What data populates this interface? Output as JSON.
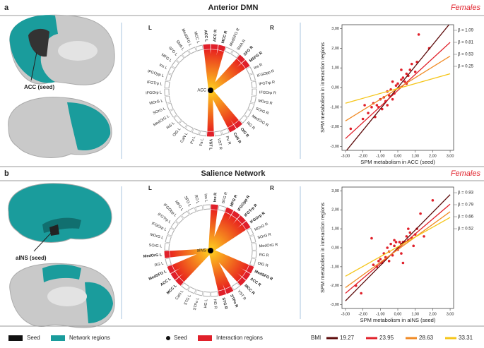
{
  "panels": [
    {
      "letter": "a",
      "title": "Anterior DMN",
      "group": "Females",
      "seed_label": "ACC (seed)",
      "circle": {
        "center": "ACC",
        "side_left": "L",
        "side_right": "R",
        "nodes": [
          {
            "label": "ACC R",
            "interaction": true
          },
          {
            "label": "MCC R",
            "interaction": true
          },
          {
            "label": "MedSFG R",
            "interaction": false
          },
          {
            "label": "SMA R",
            "interaction": false
          },
          {
            "label": "SFG R",
            "interaction": true
          },
          {
            "label": "MSFG R",
            "interaction": true
          },
          {
            "label": "Ins R",
            "interaction": false
          },
          {
            "label": "IFGOpp R",
            "interaction": false
          },
          {
            "label": "IFGTrp R",
            "interaction": false
          },
          {
            "label": "IFGOrp R",
            "interaction": false
          },
          {
            "label": "MOrG R",
            "interaction": false
          },
          {
            "label": "SOrG R",
            "interaction": false
          },
          {
            "label": "MedOrG R",
            "interaction": false
          },
          {
            "label": "RG R",
            "interaction": false
          },
          {
            "label": "OlG R",
            "interaction": true
          },
          {
            "label": "CaN R",
            "interaction": true
          },
          {
            "label": "Pu R",
            "interaction": false
          },
          {
            "label": "VST R",
            "interaction": false
          },
          {
            "label": "VST L",
            "interaction": true
          },
          {
            "label": "Pa L",
            "interaction": false
          },
          {
            "label": "Pu L",
            "interaction": false
          },
          {
            "label": "CaN L",
            "interaction": false
          },
          {
            "label": "OlG L",
            "interaction": false
          },
          {
            "label": "RG L",
            "interaction": false
          },
          {
            "label": "MedOrG L",
            "interaction": false
          },
          {
            "label": "SOrG L",
            "interaction": false
          },
          {
            "label": "MOrG L",
            "interaction": false
          },
          {
            "label": "IFGOrp L",
            "interaction": false
          },
          {
            "label": "IFGTrp L",
            "interaction": false
          },
          {
            "label": "IFGOpp L",
            "interaction": false
          },
          {
            "label": "Ins L",
            "interaction": false
          },
          {
            "label": "MFG L",
            "interaction": false
          },
          {
            "label": "SFG L",
            "interaction": false
          },
          {
            "label": "SMA L",
            "interaction": false
          },
          {
            "label": "MedSFG L",
            "interaction": false
          },
          {
            "label": "MCC L",
            "interaction": false
          },
          {
            "label": "ACC L",
            "interaction": true
          }
        ]
      }
    },
    {
      "letter": "b",
      "title": "Salience Network",
      "group": "Females",
      "seed_label": "aINS (seed)",
      "circle": {
        "center": "aINS",
        "side_left": "L",
        "side_right": "R",
        "nodes": [
          {
            "label": "Ins R",
            "interaction": true
          },
          {
            "label": "SFG R",
            "interaction": false
          },
          {
            "label": "MFG R",
            "interaction": true
          },
          {
            "label": "IFGOpp R",
            "interaction": true
          },
          {
            "label": "IFGTrp R",
            "interaction": true
          },
          {
            "label": "IFGOrp R",
            "interaction": true
          },
          {
            "label": "MOrG R",
            "interaction": false
          },
          {
            "label": "SOrG R",
            "interaction": false
          },
          {
            "label": "MedOrG R",
            "interaction": false
          },
          {
            "label": "RG R",
            "interaction": false
          },
          {
            "label": "OlG R",
            "interaction": false
          },
          {
            "label": "MedSFG R",
            "interaction": true
          },
          {
            "label": "ACC R",
            "interaction": true
          },
          {
            "label": "MCC R",
            "interaction": true
          },
          {
            "label": "VST R",
            "interaction": false
          },
          {
            "label": "STPo R",
            "interaction": true
          },
          {
            "label": "STG R",
            "interaction": true
          },
          {
            "label": "HG R",
            "interaction": false
          },
          {
            "label": "HG L",
            "interaction": false
          },
          {
            "label": "STPo L",
            "interaction": false
          },
          {
            "label": "STG L",
            "interaction": false
          },
          {
            "label": "CaN L",
            "interaction": false
          },
          {
            "label": "MCC L",
            "interaction": true
          },
          {
            "label": "ACC L",
            "interaction": true
          },
          {
            "label": "MedSFG L",
            "interaction": true
          },
          {
            "label": "RG L",
            "interaction": false
          },
          {
            "label": "MedOrG L",
            "interaction": true
          },
          {
            "label": "SOrG L",
            "interaction": false
          },
          {
            "label": "MOrG L",
            "interaction": false
          },
          {
            "label": "IFGOrp L",
            "interaction": false
          },
          {
            "label": "IFGTrp L",
            "interaction": false
          },
          {
            "label": "IFGOpp L",
            "interaction": false
          },
          {
            "label": "MFG L",
            "interaction": false
          },
          {
            "label": "SFG L",
            "interaction": false
          },
          {
            "label": "RO L",
            "interaction": false
          },
          {
            "label": "Ins L",
            "interaction": false
          }
        ]
      }
    }
  ],
  "chart_data": [
    {
      "type": "scatter",
      "x_label": "SPM metabolism in ACC (seed)",
      "y_label": "SPM metabolism in  interaction regions",
      "color": "#e0202a",
      "x": [
        -2.7,
        -2.0,
        -1.9,
        -1.7,
        -1.5,
        -1.4,
        -1.3,
        -1.2,
        -1.1,
        -1.0,
        -0.9,
        -0.8,
        -0.7,
        -0.6,
        -0.5,
        -0.4,
        -0.3,
        -0.2,
        -0.1,
        0.0,
        0.1,
        0.2,
        0.3,
        0.4,
        0.5,
        0.6,
        0.7,
        0.8,
        1.0,
        1.1,
        1.2,
        1.8,
        -0.3,
        0.2,
        0.5,
        -0.6
      ],
      "values": [
        -2.1,
        -1.6,
        -0.9,
        -1.3,
        -1.0,
        -0.8,
        -1.5,
        -0.9,
        -1.0,
        -0.6,
        -1.1,
        -0.5,
        -0.7,
        -0.2,
        -0.4,
        -0.1,
        0.3,
        -0.3,
        0.1,
        0.2,
        0.0,
        0.4,
        0.5,
        0.3,
        0.7,
        0.6,
        0.9,
        1.2,
        0.8,
        1.3,
        2.7,
        2.0,
        -0.6,
        0.9,
        0.2,
        -0.9
      ],
      "series": [
        {
          "name": "β = 1.09",
          "color": "#5c0a0a",
          "x": [
            -3,
            3
          ],
          "values": [
            -3.27,
            3.27
          ]
        },
        {
          "name": "β = 0.81",
          "color": "#e0202a",
          "x": [
            -3,
            3
          ],
          "values": [
            -2.6,
            2.3
          ]
        },
        {
          "name": "β = 0.53",
          "color": "#f08a24",
          "x": [
            -3,
            3
          ],
          "values": [
            -1.7,
            1.6
          ]
        },
        {
          "name": "β = 0.25",
          "color": "#f5c518",
          "x": [
            -3,
            3
          ],
          "values": [
            -0.8,
            0.7
          ]
        }
      ],
      "xlim": [
        -3.2,
        3.2
      ],
      "ylim": [
        -3.2,
        3.2
      ],
      "xticks": [
        {
          "value": -3,
          "label": "-3,00"
        },
        {
          "value": -2,
          "label": "-2,00"
        },
        {
          "value": -1,
          "label": "-1,00"
        },
        {
          "value": 0,
          "label": "0,00"
        },
        {
          "value": 1,
          "label": "1,00"
        },
        {
          "value": 2,
          "label": "2,00"
        },
        {
          "value": 3,
          "label": "3,00"
        }
      ],
      "yticks": [
        {
          "value": -3,
          "label": "-3,00"
        },
        {
          "value": -2,
          "label": "-2,00"
        },
        {
          "value": -1,
          "label": "-1,00"
        },
        {
          "value": 0,
          "label": "0,00"
        },
        {
          "value": 1,
          "label": "1,00"
        },
        {
          "value": 2,
          "label": "2,00"
        },
        {
          "value": 3,
          "label": "3,00"
        }
      ]
    },
    {
      "type": "scatter",
      "x_label": "SPM metabolism in aINS (seed)",
      "y_label": "SPM metabolism in  interaction regions",
      "color": "#e0202a",
      "x": [
        -2.4,
        -2.1,
        -1.5,
        -1.4,
        -1.2,
        -1.1,
        -1.0,
        -0.9,
        -0.8,
        -0.7,
        -0.6,
        -0.5,
        -0.4,
        -0.3,
        -0.2,
        -0.1,
        0.0,
        0.1,
        0.2,
        0.3,
        0.4,
        0.5,
        0.6,
        0.7,
        0.8,
        1.0,
        1.1,
        1.3,
        1.5,
        2.0,
        -0.5,
        0.3,
        0.2,
        0.6,
        -0.2,
        0.9
      ],
      "values": [
        -2.0,
        -2.4,
        0.5,
        -0.9,
        -1.0,
        -0.7,
        -0.6,
        -0.8,
        -0.3,
        -0.5,
        0.0,
        -0.2,
        0.2,
        -0.4,
        0.1,
        0.3,
        -0.1,
        0.3,
        0.2,
        -0.8,
        0.3,
        0.6,
        0.4,
        0.8,
        0.5,
        0.7,
        1.0,
        1.8,
        0.6,
        2.5,
        -0.7,
        0.3,
        -0.3,
        1.0,
        0.4,
        0.1
      ],
      "series": [
        {
          "name": "β = 0.93",
          "color": "#5c0a0a",
          "x": [
            -3,
            3
          ],
          "values": [
            -2.8,
            2.8
          ]
        },
        {
          "name": "β = 0.79",
          "color": "#e0202a",
          "x": [
            -3,
            3
          ],
          "values": [
            -2.4,
            2.3
          ]
        },
        {
          "name": "β = 0.66",
          "color": "#f08a24",
          "x": [
            -3,
            3
          ],
          "values": [
            -2.1,
            1.9
          ]
        },
        {
          "name": "β = 0.52",
          "color": "#f5c518",
          "x": [
            -3,
            3
          ],
          "values": [
            -1.5,
            1.6
          ]
        }
      ],
      "xlim": [
        -3.2,
        3.2
      ],
      "ylim": [
        -3.2,
        3.2
      ],
      "xticks": [
        {
          "value": -3,
          "label": "-3,00"
        },
        {
          "value": -2,
          "label": "-2,00"
        },
        {
          "value": -1,
          "label": "-1,00"
        },
        {
          "value": 0,
          "label": "0,00"
        },
        {
          "value": 1,
          "label": "1,00"
        },
        {
          "value": 2,
          "label": "2,00"
        },
        {
          "value": 3,
          "label": "3,00"
        }
      ],
      "yticks": [
        {
          "value": -3,
          "label": "-3,00"
        },
        {
          "value": -2,
          "label": "-2,00"
        },
        {
          "value": -1,
          "label": "-1,00"
        },
        {
          "value": 0,
          "label": "0,00"
        },
        {
          "value": 1,
          "label": "1,00"
        },
        {
          "value": 2,
          "label": "2,00"
        },
        {
          "value": 3,
          "label": "3,00"
        }
      ]
    }
  ],
  "legend": {
    "seed": "Seed",
    "network": "Network regions",
    "seed_dot": "Seed",
    "interaction": "Interaction regions",
    "bmi_title": "BMI",
    "bmi": [
      {
        "value": 19.27,
        "color": "#5c0a0a"
      },
      {
        "value": 23.95,
        "color": "#e0202a"
      },
      {
        "value": 28.63,
        "color": "#f08a24"
      },
      {
        "value": 33.31,
        "color": "#f5c518"
      }
    ]
  }
}
